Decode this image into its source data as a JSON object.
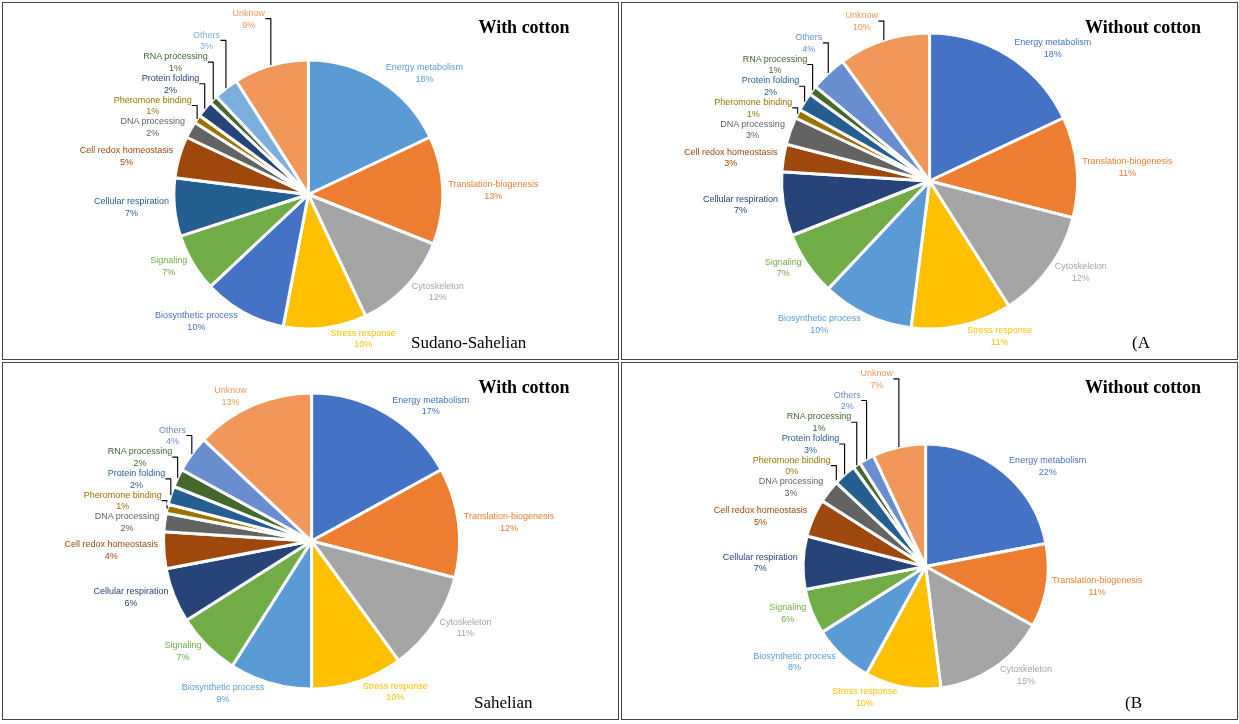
{
  "chart_data": [
    {
      "type": "pie",
      "title": "With cotton",
      "categories": [
        "Energy metabolism",
        "Translation-biogenesis",
        "Cytoskeleton",
        "Stress response",
        "Biosynthetic process",
        "Signaling",
        "Cellular respiration",
        "Cell redox homeostasis",
        "DNA processing",
        "Pheromone binding",
        "Protein folding",
        "RNA processing",
        "Others",
        "Unknow"
      ],
      "values": [
        18,
        13,
        12,
        10,
        10,
        7,
        7,
        5,
        2,
        1,
        2,
        1,
        3,
        9
      ],
      "value_labels": [
        "18%",
        "13%",
        "12%",
        "10%",
        "10%",
        "7%",
        "7%",
        "5%",
        "2%",
        "1%",
        "2%",
        "1%",
        "3%",
        "9%"
      ],
      "colors": [
        "#5b9bd5",
        "#ed7d31",
        "#a5a5a5",
        "#ffc000",
        "#4472c4",
        "#70ad47",
        "#255e91",
        "#9e480e",
        "#636363",
        "#997300",
        "#264478",
        "#43682b",
        "#7cafdd",
        "#f1975a"
      ],
      "annotations": [
        "Sudano-Sahelian"
      ]
    },
    {
      "type": "pie",
      "title": "Without cotton",
      "categories": [
        "Energy metabolism",
        "Translation-biogenesis",
        "Cytoskeleton",
        "Stress response",
        "Biosynthetic process",
        "Signaling",
        "Cellular respiration",
        "Cell redox homeostasis",
        "DNA processing",
        "Pheromone binding",
        "Protein folding",
        "RNA processing",
        "Others",
        "Unknow"
      ],
      "values": [
        18,
        11,
        12,
        11,
        10,
        7,
        7,
        3,
        3,
        1,
        2,
        1,
        4,
        10
      ],
      "value_labels": [
        "18%",
        "11%",
        "12%",
        "11%",
        "10%",
        "7%",
        "7%",
        "3%",
        "3%",
        "1%",
        "2%",
        "1%",
        "4%",
        "10%"
      ],
      "colors": [
        "#4472c4",
        "#ed7d31",
        "#a5a5a5",
        "#ffc000",
        "#5b9bd5",
        "#70ad47",
        "#264478",
        "#9e480e",
        "#636363",
        "#997300",
        "#255e91",
        "#43682b",
        "#698ed0",
        "#f1975a"
      ],
      "annotations": [
        "(A"
      ]
    },
    {
      "type": "pie",
      "title": "With cotton",
      "categories": [
        "Energy metabolism",
        "Translation-biogenesis",
        "Cytoskeleton",
        "Stress response",
        "Biosynthetic process",
        "Signaling",
        "Cellular respiration",
        "Cell redox homeostasis",
        "DNA processing",
        "Pheromone binding",
        "Protein folding",
        "RNA processing",
        "Others",
        "Unknow"
      ],
      "values": [
        17,
        12,
        11,
        10,
        9,
        7,
        6,
        4,
        2,
        1,
        2,
        2,
        4,
        13
      ],
      "value_labels": [
        "17%",
        "12%",
        "11%",
        "10%",
        "9%",
        "7%",
        "6%",
        "4%",
        "2%",
        "1%",
        "2%",
        "2%",
        "4%",
        "13%"
      ],
      "colors": [
        "#4472c4",
        "#ed7d31",
        "#a5a5a5",
        "#ffc000",
        "#5b9bd5",
        "#70ad47",
        "#264478",
        "#9e480e",
        "#636363",
        "#997300",
        "#255e91",
        "#43682b",
        "#698ed0",
        "#f1975a"
      ],
      "annotations": [
        "Sahelian"
      ]
    },
    {
      "type": "pie",
      "title": "Without cotton",
      "categories": [
        "Energy metabolism",
        "Translation-biogenesis",
        "Cytoskeleton",
        "Stress response",
        "Biosynthetic process",
        "Signaling",
        "Cellular respiration",
        "Cell redox homeostasis",
        "DNA processing",
        "Pheromone binding",
        "Protein folding",
        "RNA processing",
        "Others",
        "Unknow"
      ],
      "values": [
        22,
        11,
        15,
        10,
        8,
        6,
        7,
        5,
        3,
        0,
        3,
        1,
        2,
        7
      ],
      "value_labels": [
        "22%",
        "11%",
        "15%",
        "10%",
        "8%",
        "6%",
        "7%",
        "5%",
        "3%",
        "0%",
        "3%",
        "1%",
        "2%",
        "7%"
      ],
      "colors": [
        "#4472c4",
        "#ed7d31",
        "#a5a5a5",
        "#ffc000",
        "#5b9bd5",
        "#70ad47",
        "#264478",
        "#9e480e",
        "#636363",
        "#997300",
        "#255e91",
        "#43682b",
        "#698ed0",
        "#f1975a"
      ],
      "annotations": [
        "(B"
      ]
    }
  ]
}
